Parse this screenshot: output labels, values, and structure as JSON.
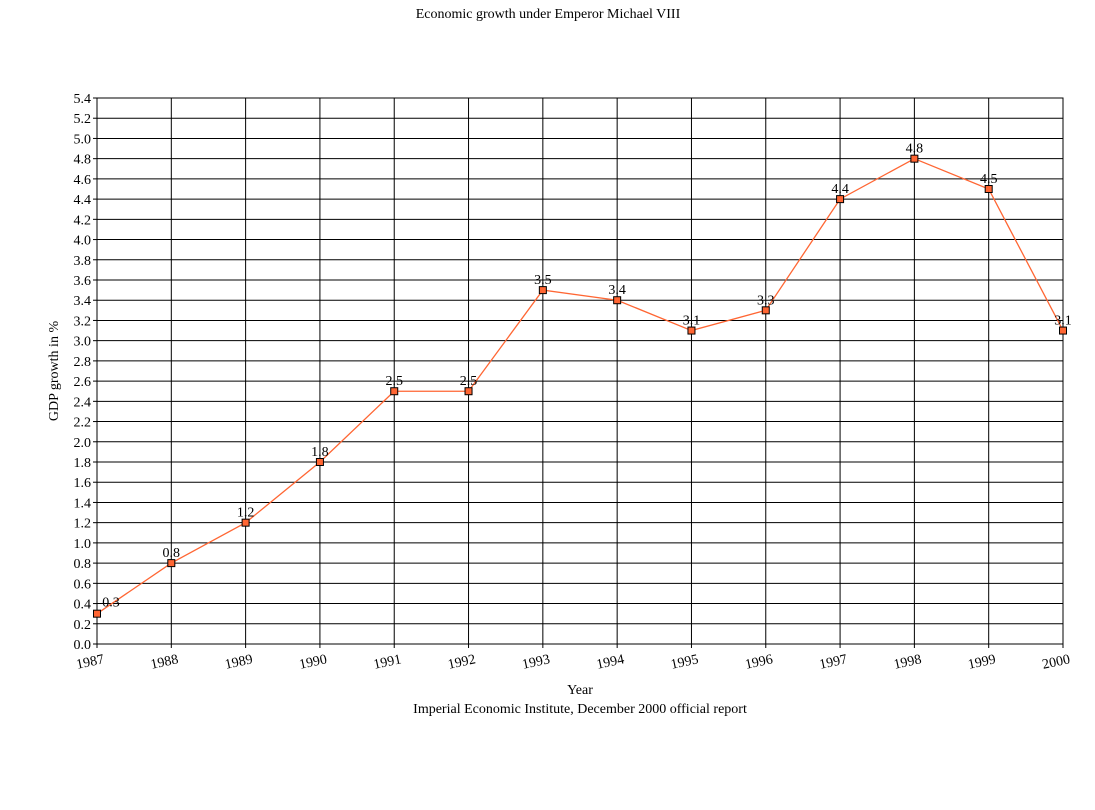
{
  "chart_data": {
    "type": "line",
    "title": "Economic growth under Emperor Michael VIII",
    "xlabel": "Year",
    "ylabel": "GDP growth in %",
    "source": "Imperial Economic Institute, December 2000 official report",
    "x": [
      "1987",
      "1988",
      "1989",
      "1990",
      "1991",
      "1992",
      "1993",
      "1994",
      "1995",
      "1996",
      "1997",
      "1998",
      "1999",
      "2000"
    ],
    "series": [
      {
        "values": [
          0.3,
          0.8,
          1.2,
          1.8,
          2.5,
          2.5,
          3.5,
          3.4,
          3.1,
          3.3,
          4.4,
          4.8,
          4.5,
          3.1
        ],
        "labels": [
          "0.3",
          "0.8",
          "1.2",
          "1.8",
          "2.5",
          "2.5",
          "3.5",
          "3.4",
          "3.1",
          "3.3",
          "4.4",
          "4.8",
          "4.5",
          "3.1"
        ],
        "color": "#ff6633",
        "marker_fill": "#ff6633",
        "marker_stroke": "#000000"
      }
    ],
    "ylim": [
      0,
      5.4
    ],
    "ytick_step": 0.2,
    "yticks": [
      "0.0",
      "0.2",
      "0.4",
      "0.6",
      "0.8",
      "1.0",
      "1.2",
      "1.4",
      "1.6",
      "1.8",
      "2.0",
      "2.2",
      "2.4",
      "2.6",
      "2.8",
      "3.0",
      "3.2",
      "3.4",
      "3.6",
      "3.8",
      "4.0",
      "4.2",
      "4.4",
      "4.6",
      "4.8",
      "5.0",
      "5.2",
      "5.4"
    ],
    "grid": true,
    "legend": "none"
  }
}
